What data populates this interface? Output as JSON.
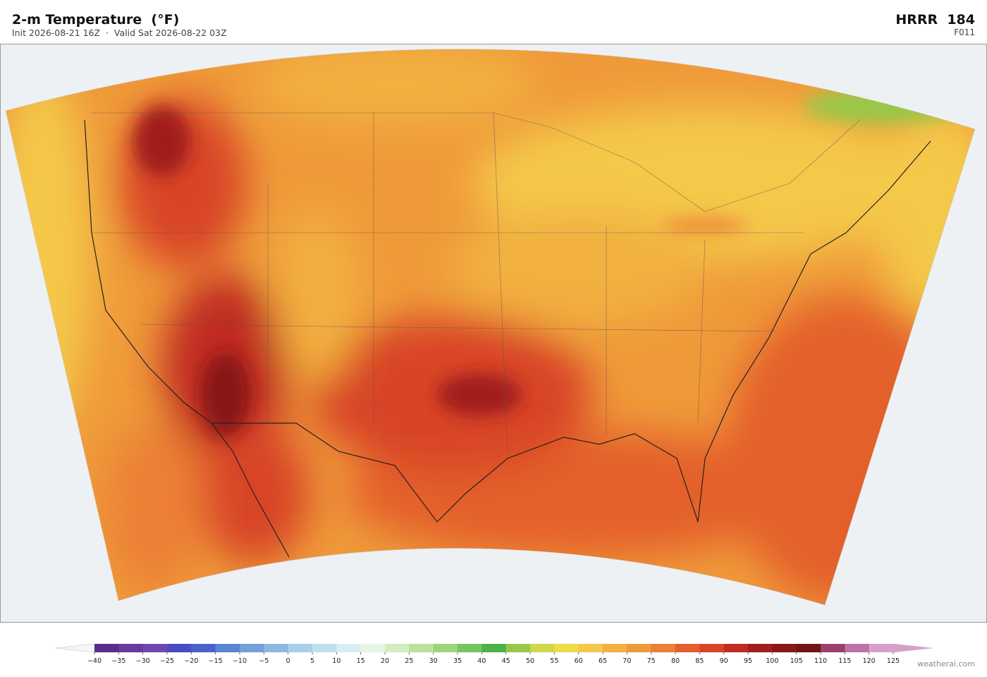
{
  "header": {
    "title": "2-m Temperature  (°F)",
    "subtitle": "Init 2026-08-21 16Z  ·  Valid Sat 2026-08-22 03Z",
    "model": "HRRR  184",
    "forecast_hour": "F011"
  },
  "colorbar": {
    "ticks": [
      {
        "value": -40,
        "label": "−40"
      },
      {
        "value": -35,
        "label": "−35"
      },
      {
        "value": -30,
        "label": "−30"
      },
      {
        "value": -25,
        "label": "−25"
      },
      {
        "value": -20,
        "label": "−20"
      },
      {
        "value": -15,
        "label": "−15"
      },
      {
        "value": -10,
        "label": "−10"
      },
      {
        "value": -5,
        "label": "−5"
      },
      0,
      5,
      10,
      15,
      20,
      25,
      30,
      35,
      40,
      45,
      50,
      55,
      60,
      65,
      70,
      75,
      80,
      85,
      90,
      95,
      100,
      105,
      110,
      115,
      120,
      125
    ],
    "colors": [
      "#5a2d8c",
      "#6a3a9e",
      "#6e48b0",
      "#4a4cc0",
      "#4d62c8",
      "#5a85d2",
      "#74a0da",
      "#8fb8e0",
      "#a8d0e8",
      "#bfe0ee",
      "#d8eef2",
      "#e6f4e6",
      "#d4ecc0",
      "#bce29a",
      "#9cd67a",
      "#78c460",
      "#4eb04a",
      "#98c848",
      "#cfd848",
      "#eedc48",
      "#f4c84a",
      "#f2b040",
      "#ef9a3a",
      "#ec8034",
      "#e4602c",
      "#d84428",
      "#c02c22",
      "#a01e1e",
      "#881818",
      "#701414",
      "#9c4070",
      "#bc72a8",
      "#d8a0c8"
    ],
    "under_color": "#f6f6f6",
    "over_color": "#d8a0c8"
  },
  "footer": {
    "credit": "weatherai.com"
  }
}
